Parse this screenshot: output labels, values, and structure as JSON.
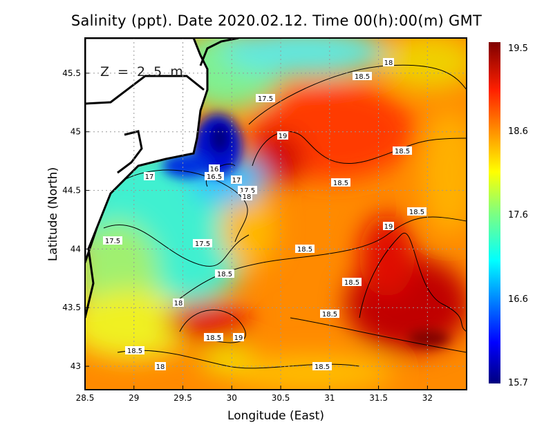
{
  "title": "Salinity (ppt). Date 2020.02.12. Time 00(h):00(m)  GMT",
  "depth_label": "Z = 2.5 m",
  "x_axis": {
    "label": "Longitude (East)",
    "ticks": [
      "28.5",
      "29",
      "29.5",
      "30",
      "30.5",
      "31",
      "31.5",
      "32"
    ],
    "values": [
      28.5,
      29,
      29.5,
      30,
      30.5,
      31,
      31.5,
      32
    ],
    "range": [
      28.5,
      32.4
    ]
  },
  "y_axis": {
    "label": "Latitude (North)",
    "ticks": [
      "43",
      "43.5",
      "44",
      "44.5",
      "45",
      "45.5"
    ],
    "values": [
      43,
      43.5,
      44,
      44.5,
      45,
      45.5
    ],
    "range": [
      42.8,
      45.8
    ]
  },
  "colorbar": {
    "ticks": [
      "19.5",
      "18.6",
      "17.6",
      "16.6",
      "15.7"
    ],
    "min": 15.7,
    "max": 19.5,
    "colormap": "jet"
  },
  "contour_labels": [
    "18",
    "18.5",
    "17.5",
    "19",
    "18.5",
    "16",
    "16.5",
    "17",
    "17",
    "17.5",
    "18",
    "18.5",
    "18.5",
    "19",
    "17.5",
    "17.5",
    "18.5",
    "18.5",
    "18.5",
    "18",
    "18.5",
    "18.5",
    "19",
    "18.5",
    "18",
    "18.5"
  ],
  "colors": {
    "land": "#ffffff",
    "coast": "#000000",
    "grid": "#aaaaaa"
  }
}
